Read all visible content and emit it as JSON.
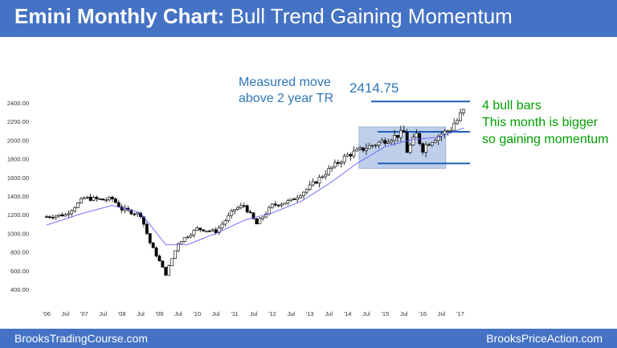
{
  "header": {
    "title_bold": "Emini Monthly Chart:",
    "title_rest": "Bull Trend Gaining Momentum"
  },
  "footer": {
    "left": "BrooksTradingCourse.com",
    "right": "BrooksPriceAction.com"
  },
  "annotations": {
    "measured_move_line1": "Measured move",
    "measured_move_line2": "above 2 year TR",
    "target_value": "2414.75",
    "bull_line1": "4 bull bars",
    "bull_line2": "This month is bigger",
    "bull_line3": "so gaining momentum"
  },
  "colors": {
    "banner": "#4472c4",
    "annotation_blue": "#2e75b6",
    "annotation_green": "#00a000",
    "moving_average": "#6060ff",
    "range_box": "#b4c7e7",
    "level_lines": "#1f5fb4"
  },
  "chart_data": {
    "type": "candlestick",
    "title": "",
    "ylim": [
      400,
      2500
    ],
    "y_ticks": [
      "2400.00",
      "2200.00",
      "2000.00",
      "1800.00",
      "1600.00",
      "1400.00",
      "1200.00",
      "1000.00",
      "800.00",
      "600.00",
      "400.00"
    ],
    "x_ticks": [
      "'06",
      "Jul",
      "'07",
      "Jul",
      "'08",
      "Jul",
      "'09",
      "Jul",
      "'10",
      "Jul",
      "'11",
      "Jul",
      "'12",
      "Jul",
      "'13",
      "Jul",
      "'14",
      "Jul",
      "'15",
      "Jul",
      "'16",
      "Jul",
      "'17"
    ],
    "grid": false,
    "trading_range": {
      "start": "2014-07",
      "end": "2016-06",
      "low": 1750,
      "high": 2090
    },
    "levels": [
      {
        "name": "measured move target",
        "value": 2414.75
      },
      {
        "name": "range high",
        "value": 2090
      },
      {
        "name": "range low",
        "value": 1750
      }
    ],
    "series": [
      {
        "type": "ohlc_close_points",
        "dates": [
          "2006-01",
          "2006-07",
          "2007-01",
          "2007-07",
          "2007-10",
          "2008-01",
          "2008-07",
          "2008-10",
          "2009-01",
          "2009-03",
          "2009-07",
          "2010-01",
          "2010-07",
          "2011-01",
          "2011-04",
          "2011-08",
          "2011-10",
          "2012-01",
          "2012-07",
          "2013-01",
          "2013-07",
          "2014-01",
          "2014-07",
          "2015-01",
          "2015-07",
          "2015-08",
          "2015-11",
          "2016-01",
          "2016-02",
          "2016-06",
          "2016-10",
          "2016-11",
          "2016-12",
          "2017-01",
          "2017-02"
        ],
        "close": [
          1180,
          1200,
          1380,
          1360,
          1370,
          1260,
          1200,
          900,
          700,
          560,
          900,
          1050,
          1020,
          1260,
          1300,
          1100,
          1180,
          1300,
          1350,
          1500,
          1680,
          1840,
          1920,
          2000,
          2080,
          1880,
          2060,
          1900,
          1950,
          2050,
          2120,
          2180,
          2210,
          2270,
          2330
        ]
      },
      {
        "name": "",
        "type": "moving_average",
        "dates": [
          "2006-01",
          "2007-01",
          "2007-10",
          "2008-07",
          "2009-03",
          "2009-10",
          "2010-07",
          "2011-04",
          "2012-01",
          "2012-10",
          "2013-07",
          "2014-04",
          "2015-01",
          "2015-10",
          "2016-06",
          "2017-02"
        ],
        "values": [
          1090,
          1220,
          1300,
          1220,
          880,
          880,
          1000,
          1140,
          1220,
          1340,
          1530,
          1750,
          1930,
          2010,
          2030,
          2130
        ]
      }
    ]
  }
}
